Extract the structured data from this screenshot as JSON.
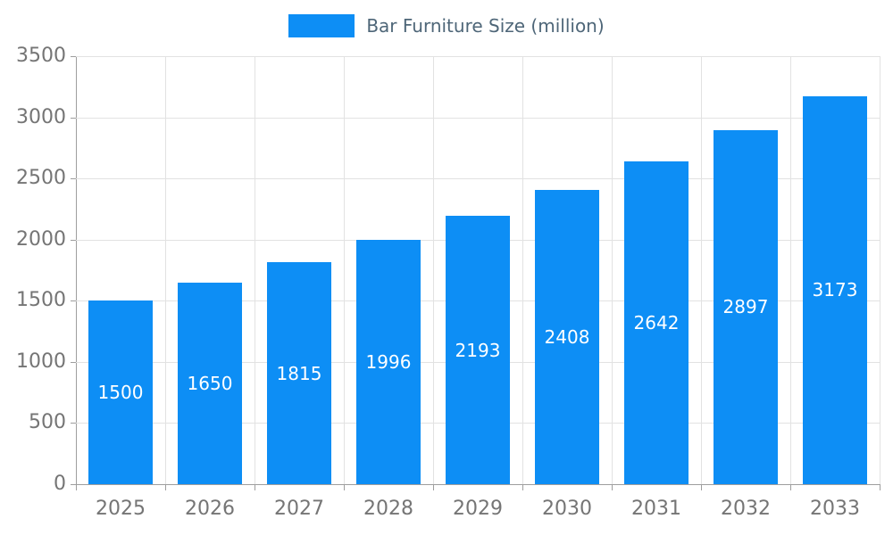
{
  "legend": {
    "label": "Bar Furniture Size (million)"
  },
  "colors": {
    "bar": "#0d8ef5",
    "grid": "#e2e2e2",
    "axis": "#9e9e9e",
    "tick_label": "#757575",
    "legend_text": "#4e6678",
    "value_label": "#ffffff",
    "background": "#ffffff"
  },
  "chart_data": {
    "type": "bar",
    "title": "Bar Furniture Size (million)",
    "categories": [
      "2025",
      "2026",
      "2027",
      "2028",
      "2029",
      "2030",
      "2031",
      "2032",
      "2033"
    ],
    "values": [
      1500,
      1650,
      1815,
      1996,
      2193,
      2408,
      2642,
      2897,
      3173
    ],
    "xlabel": "",
    "ylabel": "",
    "ylim": [
      0,
      3500
    ],
    "yticks": [
      0,
      500,
      1000,
      1500,
      2000,
      2500,
      3000,
      3500
    ],
    "ytick_step": 500,
    "grid": true,
    "legend_position": "top-center",
    "value_label_position": "inside-center"
  }
}
